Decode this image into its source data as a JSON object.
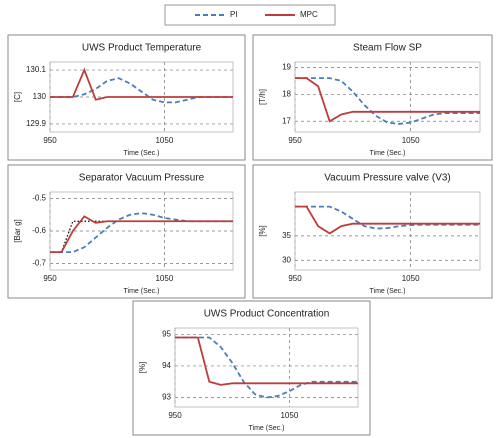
{
  "chart_data": [
    {
      "type": "line",
      "title": "UWS Product Temperature",
      "xlabel": "Time (Sec.)",
      "ylabel": "[C]",
      "x": [
        950,
        960,
        970,
        980,
        990,
        1000,
        1010,
        1020,
        1030,
        1040,
        1050,
        1060,
        1070,
        1080,
        1090,
        1100,
        1110
      ],
      "xlim": [
        950,
        1110
      ],
      "xticks": [
        950,
        1050
      ],
      "ylim": [
        129.87,
        130.13
      ],
      "yticks": [
        129.9,
        130,
        130.1
      ],
      "grid": true,
      "series": [
        {
          "name": "PI",
          "color": "#4a7ebb",
          "dash": "dash",
          "values": [
            130,
            130,
            130,
            130.01,
            130.03,
            130.06,
            130.07,
            130.05,
            130.02,
            129.99,
            129.98,
            129.98,
            129.99,
            130,
            130,
            130,
            130
          ]
        },
        {
          "name": "MPC",
          "color": "#be3c3c",
          "dash": "solid",
          "values": [
            130,
            130,
            130,
            130.1,
            129.99,
            130,
            130,
            130,
            130,
            130,
            130,
            130,
            130,
            130,
            130,
            130,
            130
          ]
        }
      ]
    },
    {
      "type": "line",
      "title": "Steam Flow SP",
      "xlabel": "Time (Sec.)",
      "ylabel": "[T/h]",
      "x": [
        950,
        960,
        970,
        980,
        990,
        1000,
        1010,
        1020,
        1030,
        1040,
        1050,
        1060,
        1070,
        1080,
        1090,
        1100,
        1110
      ],
      "xlim": [
        950,
        1110
      ],
      "xticks": [
        950,
        1050
      ],
      "ylim": [
        16.6,
        19.2
      ],
      "yticks": [
        17,
        18,
        19
      ],
      "grid": true,
      "series": [
        {
          "name": "PI",
          "color": "#4a7ebb",
          "dash": "dash",
          "values": [
            18.6,
            18.6,
            18.6,
            18.6,
            18.5,
            18.1,
            17.6,
            17.2,
            16.95,
            16.9,
            16.95,
            17.1,
            17.25,
            17.3,
            17.3,
            17.3,
            17.3
          ]
        },
        {
          "name": "MPC",
          "color": "#be3c3c",
          "dash": "solid",
          "values": [
            18.6,
            18.6,
            18.3,
            17,
            17.25,
            17.35,
            17.35,
            17.35,
            17.35,
            17.35,
            17.35,
            17.35,
            17.35,
            17.35,
            17.35,
            17.35,
            17.35
          ]
        }
      ]
    },
    {
      "type": "line",
      "title": "Separator Vacuum Pressure",
      "xlabel": "Time (Sec.)",
      "ylabel": "[Bar g]",
      "x": [
        950,
        960,
        970,
        980,
        990,
        1000,
        1010,
        1020,
        1030,
        1040,
        1050,
        1060,
        1070,
        1080,
        1090,
        1100,
        1110
      ],
      "xlim": [
        950,
        1110
      ],
      "xticks": [
        950,
        1050
      ],
      "ylim": [
        -0.72,
        -0.48
      ],
      "yticks": [
        -0.7,
        -0.6,
        -0.5
      ],
      "grid": true,
      "series": [
        {
          "color": "#000000",
          "dash": "dot",
          "values": [
            -0.665,
            -0.665,
            -0.57,
            -0.57,
            -0.57,
            -0.57,
            -0.57,
            -0.57,
            -0.57,
            -0.57,
            -0.57,
            -0.57,
            -0.57,
            -0.57,
            -0.57,
            -0.57,
            -0.57
          ]
        },
        {
          "name": "PI",
          "color": "#4a7ebb",
          "dash": "dash",
          "values": [
            -0.665,
            -0.665,
            -0.665,
            -0.65,
            -0.62,
            -0.59,
            -0.565,
            -0.55,
            -0.545,
            -0.55,
            -0.56,
            -0.565,
            -0.57,
            -0.57,
            -0.57,
            -0.57,
            -0.57
          ]
        },
        {
          "name": "MPC",
          "color": "#be3c3c",
          "dash": "solid",
          "values": [
            -0.665,
            -0.665,
            -0.6,
            -0.555,
            -0.575,
            -0.57,
            -0.57,
            -0.57,
            -0.57,
            -0.57,
            -0.57,
            -0.57,
            -0.57,
            -0.57,
            -0.57,
            -0.57,
            -0.57
          ]
        }
      ]
    },
    {
      "type": "line",
      "title": "Vacuum Pressure valve (V3)",
      "xlabel": "Time (Sec.)",
      "ylabel": "[%]",
      "x": [
        950,
        960,
        970,
        980,
        990,
        1000,
        1010,
        1020,
        1030,
        1040,
        1050,
        1060,
        1070,
        1080,
        1090,
        1100,
        1110
      ],
      "xlim": [
        950,
        1110
      ],
      "xticks": [
        950,
        1050
      ],
      "ylim": [
        28,
        44
      ],
      "yticks": [
        30,
        35
      ],
      "grid": true,
      "series": [
        {
          "name": "PI",
          "color": "#4a7ebb",
          "dash": "dash",
          "values": [
            41,
            41,
            41,
            41,
            40,
            38.5,
            37,
            36.5,
            36.6,
            37,
            37.2,
            37.3,
            37.3,
            37.3,
            37.3,
            37.3,
            37.3
          ]
        },
        {
          "name": "MPC",
          "color": "#be3c3c",
          "dash": "solid",
          "values": [
            41,
            41,
            37,
            35.5,
            37,
            37.5,
            37.5,
            37.5,
            37.5,
            37.5,
            37.5,
            37.5,
            37.5,
            37.5,
            37.5,
            37.5,
            37.5
          ]
        }
      ]
    },
    {
      "type": "line",
      "title": "UWS Product Concentration",
      "xlabel": "Time (Sec.)",
      "ylabel": "[%]",
      "x": [
        950,
        960,
        970,
        980,
        990,
        1000,
        1010,
        1020,
        1030,
        1040,
        1050,
        1060,
        1070,
        1080,
        1090,
        1100,
        1110
      ],
      "xlim": [
        950,
        1110
      ],
      "xticks": [
        950,
        1050
      ],
      "ylim": [
        92.7,
        95.2
      ],
      "yticks": [
        93,
        94,
        95
      ],
      "grid": true,
      "series": [
        {
          "name": "PI",
          "color": "#4a7ebb",
          "dash": "dash",
          "values": [
            94.9,
            94.9,
            94.9,
            94.9,
            94.6,
            94.1,
            93.5,
            93.1,
            93,
            93.05,
            93.2,
            93.4,
            93.5,
            93.5,
            93.5,
            93.5,
            93.5
          ]
        },
        {
          "name": "MPC",
          "color": "#be3c3c",
          "dash": "solid",
          "values": [
            94.9,
            94.9,
            94.9,
            93.5,
            93.4,
            93.45,
            93.45,
            93.45,
            93.45,
            93.45,
            93.45,
            93.45,
            93.45,
            93.45,
            93.45,
            93.45,
            93.45
          ]
        }
      ]
    }
  ]
}
